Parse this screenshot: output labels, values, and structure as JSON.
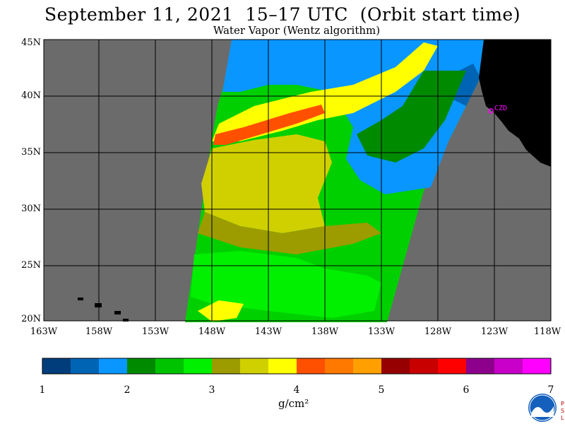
{
  "title": "September 11, 2021  15–17 UTC  (Orbit start time)",
  "subtitle": "Water Vapor (Wentz algorithm)",
  "lat_labels": [
    "45N",
    "40N",
    "35N",
    "30N",
    "25N",
    "20N"
  ],
  "lon_labels": [
    "163W",
    "158W",
    "153W",
    "148W",
    "143W",
    "138W",
    "133W",
    "128W",
    "123W",
    "118W"
  ],
  "station_label": "CZD",
  "colorbar": {
    "ticks": [
      "1",
      "2",
      "3",
      "4",
      "5",
      "6",
      "7"
    ],
    "unit": "g/cm²",
    "colors": [
      "#003d7a",
      "#0064b4",
      "#0a96ff",
      "#008a00",
      "#00c300",
      "#00f000",
      "#9c9c00",
      "#d0d000",
      "#ffff00",
      "#ff5000",
      "#ff7800",
      "#ffa000",
      "#960000",
      "#c80000",
      "#ff0000",
      "#8c008c",
      "#c800c8",
      "#ff00ff"
    ]
  },
  "map_colors": {
    "no_data": "#6b6b6b",
    "land": "#000000",
    "grid": "#000000",
    "station": "#ff00ff"
  },
  "logos": [
    "noaa-logo",
    "psl-logo"
  ]
}
